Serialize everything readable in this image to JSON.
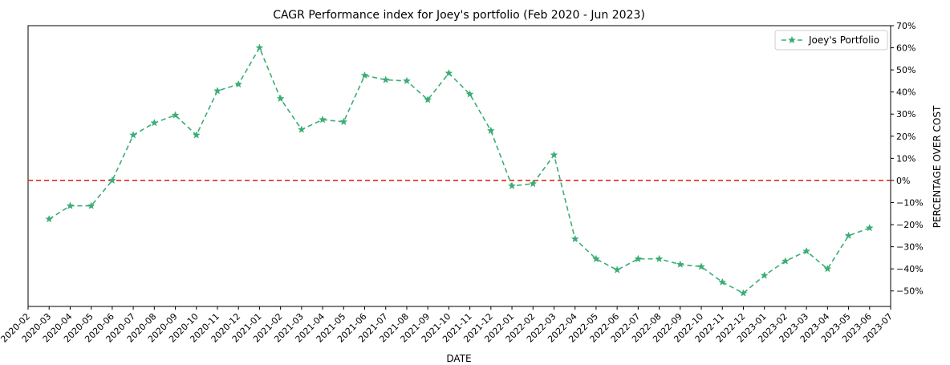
{
  "chart_data": {
    "type": "line",
    "title": "CAGR Performance index for Joey's portfolio (Feb 2020 - Jun 2023)",
    "xlabel": "DATE",
    "ylabel": "PERCENTAGE OVER COST",
    "ylim": [
      -57,
      70
    ],
    "yticks": [
      70,
      60,
      50,
      40,
      30,
      20,
      10,
      0,
      -10,
      -20,
      -30,
      -40,
      -50
    ],
    "ytick_labels": [
      "70%",
      "60%",
      "50%",
      "40%",
      "30%",
      "20%",
      "10%",
      "0%",
      "−10%",
      "−20%",
      "−30%",
      "−40%",
      "−50%"
    ],
    "y_axis_side": "right",
    "xticks": [
      "2020-02",
      "2020-03",
      "2020-04",
      "2020-05",
      "2020-06",
      "2020-07",
      "2020-08",
      "2020-09",
      "2020-10",
      "2020-11",
      "2020-12",
      "2021-01",
      "2021-02",
      "2021-03",
      "2021-04",
      "2021-05",
      "2021-06",
      "2021-07",
      "2021-08",
      "2021-09",
      "2021-10",
      "2021-11",
      "2021-12",
      "2022-01",
      "2022-02",
      "2022-03",
      "2022-04",
      "2022-05",
      "2022-06",
      "2022-07",
      "2022-08",
      "2022-09",
      "2022-10",
      "2022-11",
      "2022-12",
      "2023-01",
      "2023-02",
      "2023-03",
      "2023-04",
      "2023-05",
      "2023-06",
      "2023-07"
    ],
    "grid": false,
    "legend": "top-right",
    "reference_line": {
      "y": 0,
      "color": "#e8251f",
      "style": "dashed"
    },
    "series": [
      {
        "name": "Joey's Portfolio",
        "color": "#3aad74",
        "line_style": "dashed",
        "marker": "star",
        "x": [
          "2020-03",
          "2020-04",
          "2020-05",
          "2020-06",
          "2020-07",
          "2020-08",
          "2020-09",
          "2020-10",
          "2020-11",
          "2020-12",
          "2021-01",
          "2021-02",
          "2021-03",
          "2021-04",
          "2021-05",
          "2021-06",
          "2021-07",
          "2021-08",
          "2021-09",
          "2021-10",
          "2021-11",
          "2021-12",
          "2022-01",
          "2022-02",
          "2022-03",
          "2022-04",
          "2022-05",
          "2022-06",
          "2022-07",
          "2022-08",
          "2022-09",
          "2022-10",
          "2022-11",
          "2022-12",
          "2023-01",
          "2023-02",
          "2023-03",
          "2023-04",
          "2023-05",
          "2023-06"
        ],
        "values": [
          -17.5,
          -11.5,
          -11.5,
          0,
          20.5,
          26,
          29.5,
          20.5,
          40.5,
          43.5,
          60,
          37,
          23,
          27.5,
          26.5,
          47.5,
          45.5,
          45,
          36.5,
          48.5,
          39,
          22.5,
          -2.5,
          -1.5,
          11.5,
          -26.5,
          -35.5,
          -40.5,
          -35.5,
          -35.5,
          -38,
          -39,
          -46,
          -51,
          -43,
          -36.5,
          -32,
          -40,
          -25,
          -21.5
        ]
      }
    ]
  }
}
